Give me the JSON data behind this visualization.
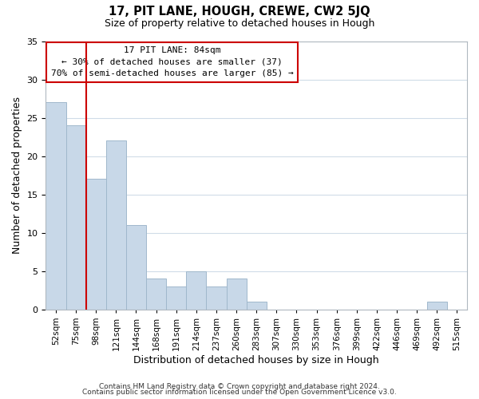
{
  "title": "17, PIT LANE, HOUGH, CREWE, CW2 5JQ",
  "subtitle": "Size of property relative to detached houses in Hough",
  "xlabel": "Distribution of detached houses by size in Hough",
  "ylabel": "Number of detached properties",
  "bar_labels": [
    "52sqm",
    "75sqm",
    "98sqm",
    "121sqm",
    "144sqm",
    "168sqm",
    "191sqm",
    "214sqm",
    "237sqm",
    "260sqm",
    "283sqm",
    "307sqm",
    "330sqm",
    "353sqm",
    "376sqm",
    "399sqm",
    "422sqm",
    "446sqm",
    "469sqm",
    "492sqm",
    "515sqm"
  ],
  "bar_values": [
    27,
    24,
    17,
    22,
    11,
    4,
    3,
    5,
    3,
    4,
    1,
    0,
    0,
    0,
    0,
    0,
    0,
    0,
    0,
    1,
    0
  ],
  "bar_color": "#c8d8e8",
  "bar_edge_color": "#a0b8cc",
  "grid_color": "#d0dce8",
  "vline_x": 1.5,
  "vline_color": "#cc0000",
  "annotation_title": "17 PIT LANE: 84sqm",
  "annotation_line1": "← 30% of detached houses are smaller (37)",
  "annotation_line2": "70% of semi-detached houses are larger (85) →",
  "annotation_box_color": "#ffffff",
  "annotation_box_edge": "#cc0000",
  "ylim": [
    0,
    35
  ],
  "yticks": [
    0,
    5,
    10,
    15,
    20,
    25,
    30,
    35
  ],
  "footer1": "Contains HM Land Registry data © Crown copyright and database right 2024.",
  "footer2": "Contains public sector information licensed under the Open Government Licence v3.0."
}
